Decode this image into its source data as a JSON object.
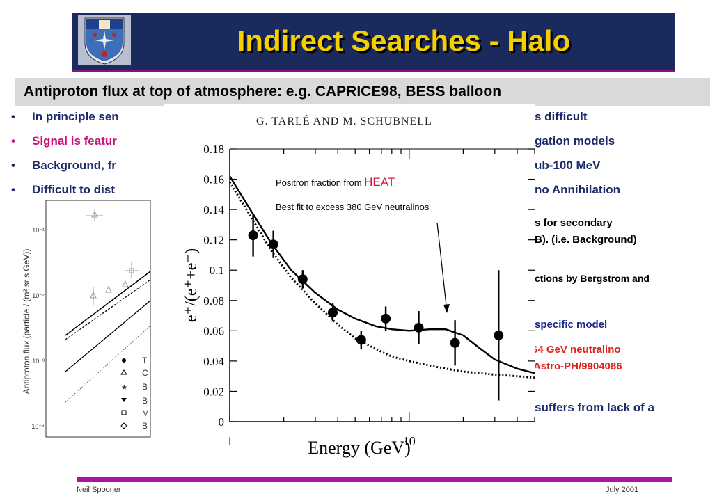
{
  "slide": {
    "title": "Indirect Searches - Halo",
    "subtitle": "Antiproton flux at top of atmosphere:  e.g.  CAPRICE98, BESS balloon",
    "bullets": [
      {
        "text": "In principle sen",
        "tail": "s difficult",
        "color": "#1b2a6b"
      },
      {
        "text": "Signal is featur",
        "tail": "gation models",
        "color": "#c8107a"
      },
      {
        "text": "Background, fr",
        "tail": "ub-100 MeV",
        "color": "#1b2a6b"
      },
      {
        "text": "Difficult to dist",
        "tail": "no Annihilation",
        "color": "#1b2a6b"
      }
    ],
    "right_notes": [
      {
        "line1": "s for secondary",
        "line2": "B).  (i.e. Background)",
        "color": "#000000"
      },
      {
        "line1": "ctions by Bergstrom and",
        "line2": "",
        "color": "#000000"
      },
      {
        "line1": "specific model",
        "line2": "",
        "color": "#1b2a8b"
      },
      {
        "line1": "64 GeV neutralino",
        "line2": "Astro-PH/9904086",
        "color": "#e0201c"
      },
      {
        "line1": "suffers from lack of a",
        "line2": "",
        "color": "#1b2a6b"
      }
    ],
    "footer_left": "Neil Spooner",
    "footer_right": "July 2001",
    "colors": {
      "banner": "#1b2a5c",
      "title": "#f5d000",
      "rule": "#a614a6"
    }
  },
  "antiproton_plot": {
    "ylabel": "Antiproton flux (particle / (m² sr s GeV))",
    "yticks": [
      "10⁻¹",
      "10⁻²",
      "10⁻³",
      "10⁻⁴"
    ],
    "legend_letters": [
      "T",
      "C",
      "B",
      "B",
      "M",
      "B"
    ]
  },
  "positron_figure": {
    "header": "G. TARLÉ AND M. SCHUBNELL",
    "annotation1_prefix": "Positron fraction from ",
    "annotation1_highlight": "HEAT",
    "annotation2": "Best fit to excess 380 GeV neutralinos"
  },
  "chart_data": {
    "type": "scatter",
    "title": "",
    "xlabel": "Energy (GeV)",
    "ylabel": "e⁺/(e⁺+e⁻)",
    "xscale": "log",
    "xlim": [
      1,
      50
    ],
    "ylim": [
      0,
      0.18
    ],
    "xtick_labels": [
      {
        "v": 1,
        "label": "1"
      },
      {
        "v": 10,
        "label": "10"
      }
    ],
    "ytick_labels": [
      "0",
      "0.02",
      "0.04",
      "0.06",
      "0.08",
      "0.1",
      "0.12",
      "0.14",
      "0.16",
      "0.18"
    ],
    "points": [
      {
        "x": 1.35,
        "y": 0.123,
        "err": 0.014
      },
      {
        "x": 1.75,
        "y": 0.117,
        "err": 0.009
      },
      {
        "x": 2.55,
        "y": 0.094,
        "err": 0.006
      },
      {
        "x": 3.75,
        "y": 0.072,
        "err": 0.006
      },
      {
        "x": 5.4,
        "y": 0.054,
        "err": 0.006
      },
      {
        "x": 7.4,
        "y": 0.068,
        "err": 0.008
      },
      {
        "x": 11.3,
        "y": 0.062,
        "err": 0.011
      },
      {
        "x": 18.0,
        "y": 0.052,
        "err": 0.015
      },
      {
        "x": 31.5,
        "y": 0.057,
        "err": 0.043
      }
    ],
    "series": [
      {
        "style": "solid",
        "x": [
          1,
          1.3,
          1.7,
          2.2,
          3,
          4,
          5,
          6.5,
          8,
          10,
          13,
          16,
          20,
          25,
          30,
          40,
          50
        ],
        "y": [
          0.162,
          0.14,
          0.118,
          0.1,
          0.085,
          0.074,
          0.068,
          0.063,
          0.061,
          0.06,
          0.061,
          0.061,
          0.057,
          0.048,
          0.041,
          0.035,
          0.032
        ]
      },
      {
        "style": "dotted",
        "x": [
          1,
          1.3,
          1.7,
          2.2,
          3,
          4,
          5,
          6.5,
          8,
          10,
          13,
          16,
          20,
          25,
          30,
          40,
          50
        ],
        "y": [
          0.158,
          0.136,
          0.113,
          0.095,
          0.078,
          0.064,
          0.055,
          0.048,
          0.043,
          0.04,
          0.037,
          0.035,
          0.033,
          0.032,
          0.031,
          0.03,
          0.029
        ]
      }
    ]
  }
}
